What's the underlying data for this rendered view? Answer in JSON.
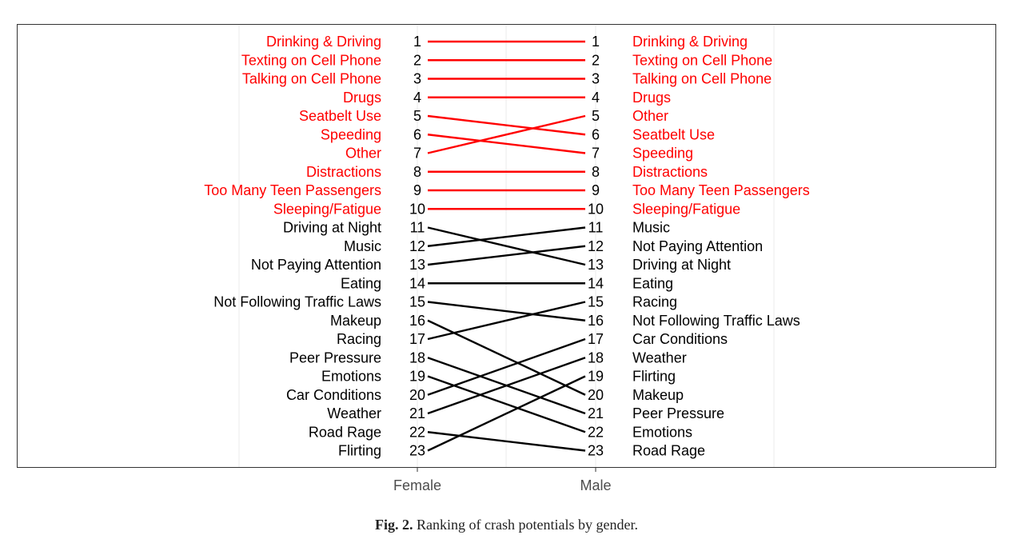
{
  "chart_data": {
    "type": "line",
    "subtype": "slope-rank",
    "x_categories": [
      "Female",
      "Male"
    ],
    "ranks": [
      1,
      23
    ],
    "female": [
      "Drinking & Driving",
      "Texting on Cell Phone",
      "Talking on Cell Phone",
      "Drugs",
      "Seatbelt Use",
      "Speeding",
      "Other",
      "Distractions",
      "Too Many Teen Passengers",
      "Sleeping/Fatigue",
      "Driving at Night",
      "Music",
      "Not Paying Attention",
      "Eating",
      "Not Following Traffic Laws",
      "Makeup",
      "Racing",
      "Peer Pressure",
      "Emotions",
      "Car Conditions",
      "Weather",
      "Road Rage",
      "Flirting"
    ],
    "male": [
      "Drinking & Driving",
      "Texting on Cell Phone",
      "Talking on Cell Phone",
      "Drugs",
      "Other",
      "Seatbelt Use",
      "Speeding",
      "Distractions",
      "Too Many Teen Passengers",
      "Sleeping/Fatigue",
      "Music",
      "Not Paying Attention",
      "Driving at Night",
      "Eating",
      "Racing",
      "Not Following Traffic Laws",
      "Car Conditions",
      "Weather",
      "Flirting",
      "Makeup",
      "Peer Pressure",
      "Emotions",
      "Road Rage"
    ],
    "highlight_top_n": 10,
    "colors": {
      "highlight": "#ff0000",
      "normal": "#000000",
      "grid": "#ebebeb"
    },
    "grid": true,
    "legend": "none"
  },
  "caption": {
    "label": "Fig. 2.",
    "text": " Ranking of crash potentials by gender."
  }
}
